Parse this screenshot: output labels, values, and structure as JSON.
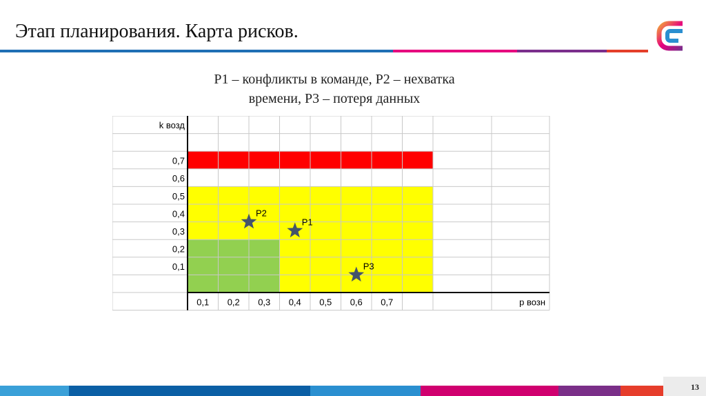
{
  "slide": {
    "title": "Этап планирования. Карта рисков.",
    "subtitle_line1": "Р1 – конфликты в команде, Р2 – нехватка",
    "subtitle_line2": "времени, Р3 – потеря данных",
    "page_number": "13"
  },
  "logo": {
    "icon": "brand-logo-icon"
  },
  "chart_data": {
    "type": "heatmap",
    "xlabel": "р возн",
    "ylabel": "k возд",
    "x_ticks": [
      "0,1",
      "0,2",
      "0,3",
      "0,4",
      "0,5",
      "0,6",
      "0,7"
    ],
    "y_ticks": [
      "0,7",
      "0,6",
      "0,5",
      "0,4",
      "0,3",
      "0,2",
      "0,1"
    ],
    "zones": [
      {
        "color": "#ff0000",
        "x_from": 0,
        "x_to": 8,
        "k_from": 0.6,
        "k_to": 0.7
      },
      {
        "color": "#ffff00",
        "x_from": 0,
        "x_to": 8,
        "k_from": 0.0,
        "k_to": 0.5
      },
      {
        "color": "#92d050",
        "x_from": 0,
        "x_to": 3,
        "k_from": 0.0,
        "k_to": 0.2
      }
    ],
    "points": [
      {
        "label": "Р1",
        "x": 0.4,
        "y": 0.3
      },
      {
        "label": "Р2",
        "x": 0.25,
        "y": 0.35
      },
      {
        "label": "Р3",
        "x": 0.6,
        "y": 0.05
      }
    ],
    "marker_color": "#44546a"
  },
  "colors": {
    "header_stripe": [
      "#1f6fb4",
      "#e6007e",
      "#7b2e8c",
      "#e43f2a"
    ],
    "footer_stripe": [
      "#3aa0d8",
      "#0b5fa5",
      "#2a8fd0",
      "#d0006f",
      "#7a2f88",
      "#e63d2b"
    ]
  }
}
